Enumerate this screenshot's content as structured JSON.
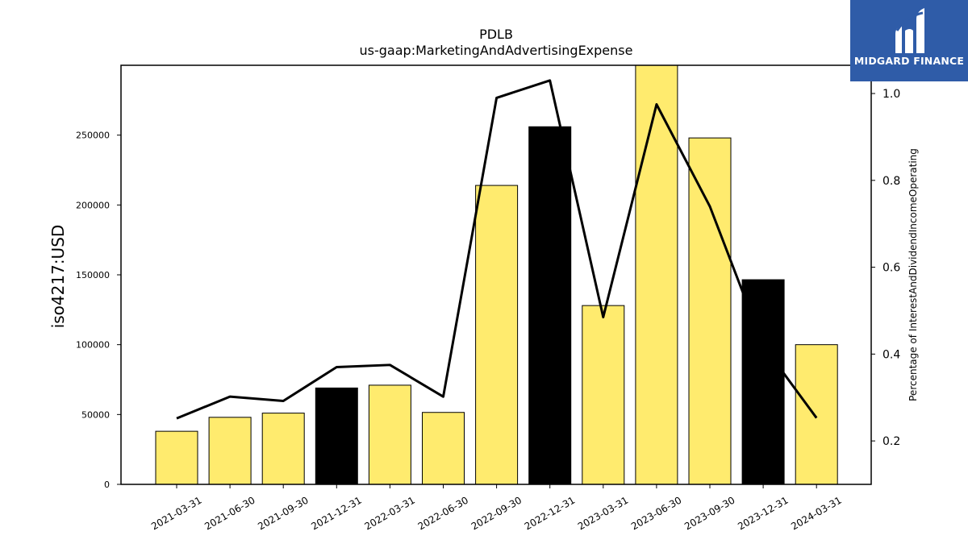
{
  "chart_data": {
    "type": "bar",
    "title": "PDLB",
    "subtitle": "us-gaap:MarketingAndAdvertisingExpense",
    "ylabel": "iso4217:USD",
    "y2label": "Percentage of InterestAndDividendIncomeOperating",
    "categories": [
      "2021-03-31",
      "2021-06-30",
      "2021-09-30",
      "2021-12-31",
      "2022-03-31",
      "2022-06-30",
      "2022-09-30",
      "2022-12-31",
      "2023-03-31",
      "2023-06-30",
      "2023-09-30",
      "2023-12-31",
      "2024-03-31"
    ],
    "series": [
      {
        "type": "bar",
        "axis": "left",
        "values": [
          38000,
          48000,
          51000,
          69000,
          71000,
          51500,
          214000,
          256000,
          128000,
          300000,
          248000,
          146500,
          100000
        ],
        "colors": [
          "#ffeb6e",
          "#ffeb6e",
          "#ffeb6e",
          "#000000",
          "#ffeb6e",
          "#ffeb6e",
          "#ffeb6e",
          "#000000",
          "#ffeb6e",
          "#ffeb6e",
          "#ffeb6e",
          "#000000",
          "#ffeb6e"
        ]
      },
      {
        "type": "line",
        "axis": "right",
        "color": "#000000",
        "values": [
          0.252,
          0.302,
          0.292,
          0.37,
          0.375,
          0.302,
          0.99,
          1.03,
          0.485,
          0.975,
          0.74,
          0.42,
          0.253
        ]
      }
    ],
    "ylim": [
      0,
      300000
    ],
    "y2lim": [
      0.1,
      1.065
    ],
    "yticks": [
      0,
      50000,
      100000,
      150000,
      200000,
      250000
    ],
    "y2ticks": [
      0.2,
      0.4,
      0.6,
      0.8,
      1.0
    ],
    "grid": false,
    "legend": "none"
  },
  "logo": {
    "text": "MIDGARD FINANCE",
    "background": "#2f5ca8",
    "icon": "midgard-logo-icon"
  }
}
